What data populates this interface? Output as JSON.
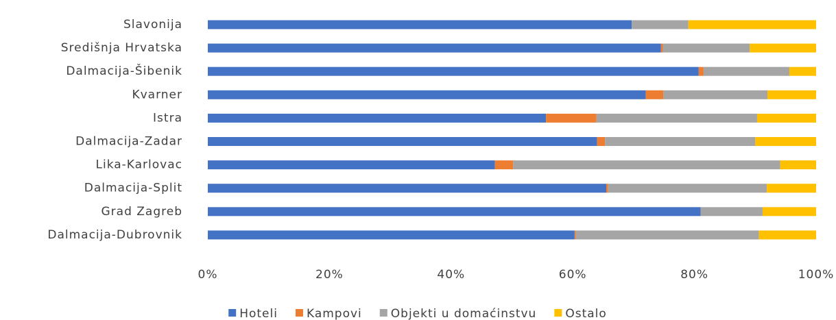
{
  "chart_data": {
    "type": "stacked-bar-horizontal",
    "categories": [
      "Slavonija",
      "Središnja Hrvatska",
      "Dalmacija-Šibenik",
      "Kvarner",
      "Istra",
      "Dalmacija-Zadar",
      "Lika-Karlovac",
      "Dalmacija-Split",
      "Grad Zagreb",
      "Dalmacija-Dubrovnik"
    ],
    "series": [
      {
        "name": "Hoteli",
        "color": "#4472c4",
        "values": [
          69.7,
          74.5,
          80.7,
          72,
          55.6,
          64,
          47.2,
          65.5,
          81,
          60.3
        ]
      },
      {
        "name": "Kampovi",
        "color": "#ed7d31",
        "values": [
          0,
          0.3,
          0.8,
          2.9,
          8.3,
          1.3,
          3,
          0.3,
          0,
          0.2
        ]
      },
      {
        "name": "Objekti u domaćinstvu",
        "color": "#a5a5a5",
        "values": [
          9.3,
          14.3,
          14.1,
          17.1,
          26.4,
          24.7,
          43.9,
          26.1,
          10.2,
          30.1
        ]
      },
      {
        "name": "Ostalo",
        "color": "#ffc000",
        "values": [
          21,
          10.9,
          4.4,
          8,
          9.7,
          10,
          5.9,
          8.1,
          8.8,
          9.4
        ]
      }
    ],
    "xlim": [
      0,
      100
    ],
    "xticks": [
      {
        "value": 0,
        "label": "0%"
      },
      {
        "value": 20,
        "label": "20%"
      },
      {
        "value": 40,
        "label": "40%"
      },
      {
        "value": 60,
        "label": "60%"
      },
      {
        "value": 80,
        "label": "80%"
      },
      {
        "value": 100,
        "label": "100%"
      }
    ],
    "legend": "bottom"
  }
}
